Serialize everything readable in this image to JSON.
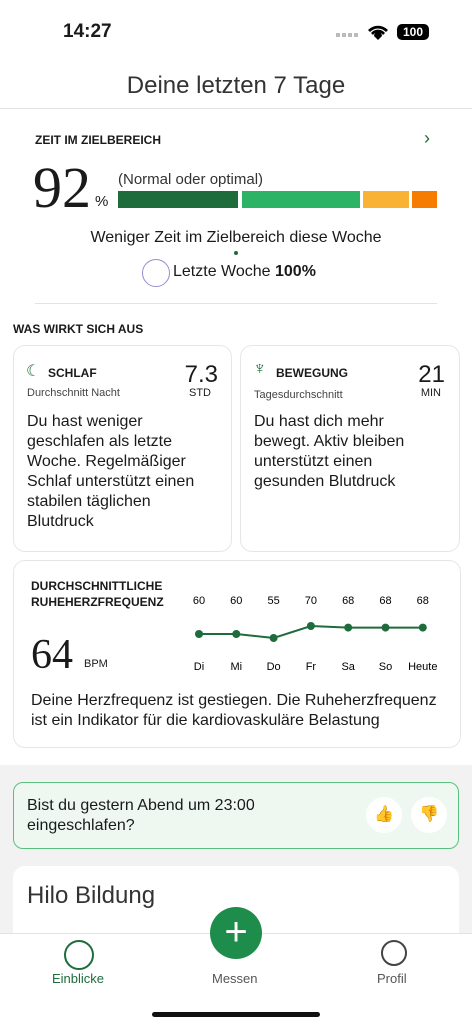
{
  "status_bar": {
    "time": "14:27",
    "battery": "100"
  },
  "header": {
    "title": "Deine letzten 7 Tage"
  },
  "zone": {
    "heading": "ZEIT IM ZIELBEREICH",
    "percent": "92",
    "percent_sign": "%",
    "range_label": "(Normal oder optimal)",
    "summary": "Weniger Zeit im Zielbereich diese Woche",
    "last_week_label": "Letzte Woche",
    "last_week_value": "100%"
  },
  "impact": {
    "heading": "WAS WIRKT SICH AUS",
    "sleep": {
      "title": "SCHLAF",
      "subtitle": "Durchschnitt Nacht",
      "value": "7.3",
      "unit": "STD",
      "text": "Du hast weniger geschlafen als letzte Woche. Regelmäßiger Schlaf unterstützt einen stabilen täglichen Blutdruck"
    },
    "activity": {
      "title": "BEWEGUNG",
      "subtitle": "Tagesdurchschnitt",
      "value": "21",
      "unit": "MIN",
      "text": "Du hast dich mehr bewegt. Aktiv bleiben unterstützt einen gesunden Blutdruck"
    }
  },
  "heart_rate": {
    "title": "DURCHSCHNITTLICHE RUHEHERZFREQUENZ",
    "value": "64",
    "unit": "BPM",
    "days": [
      "Di",
      "Mi",
      "Do",
      "Fr",
      "Sa",
      "So",
      "Heute"
    ],
    "values": [
      60,
      60,
      55,
      70,
      68,
      68,
      68
    ],
    "color": "#1e6b3b",
    "text": "Deine Herzfrequenz ist gestiegen. Die Ruheherzfrequenz ist ein Indikator für die kardiovaskuläre Belastung"
  },
  "question": {
    "text": "Bist du gestern Abend um 23:00 eingeschlafen?"
  },
  "education": {
    "title": "Hilo Bildung"
  },
  "tab_bar": {
    "tabs": [
      "Einblicke",
      "Messen",
      "Profil"
    ]
  }
}
